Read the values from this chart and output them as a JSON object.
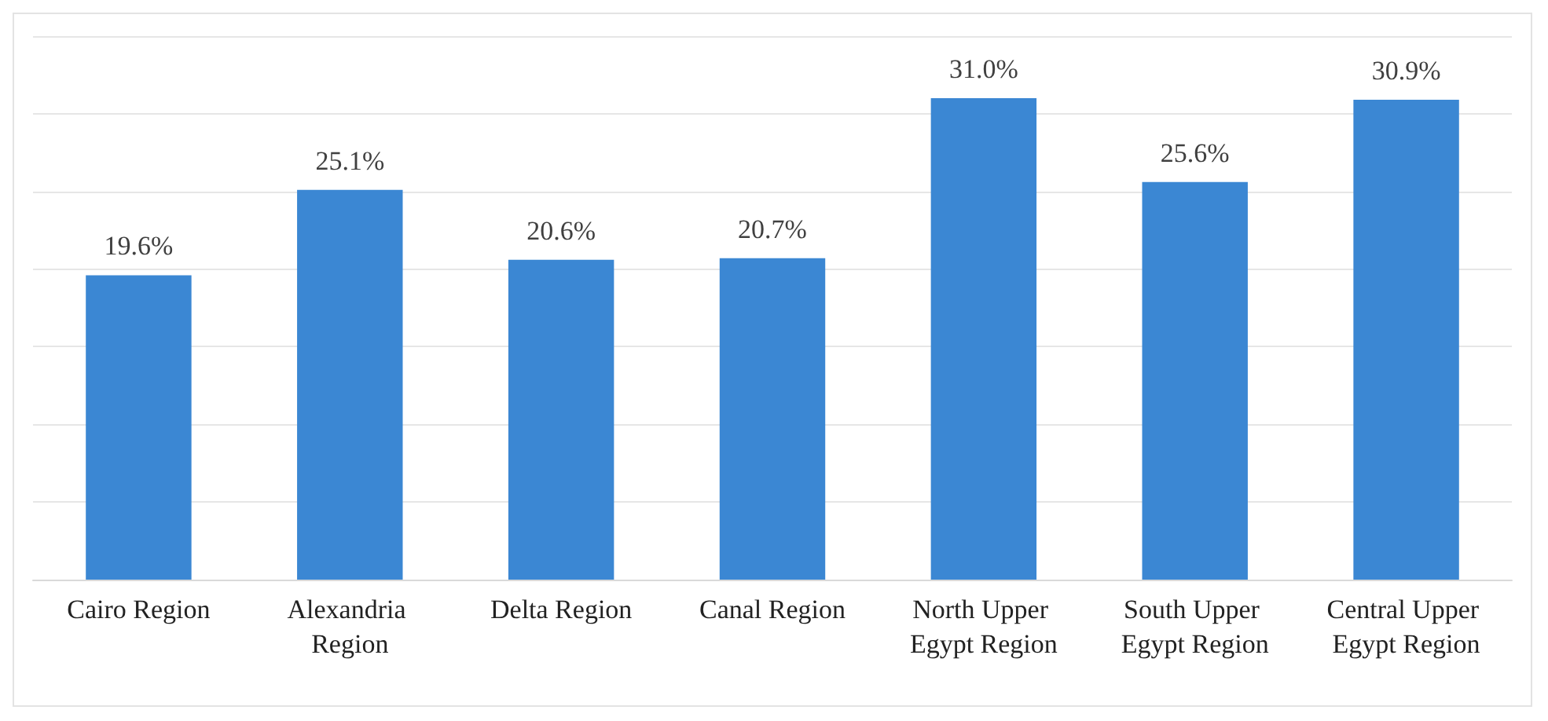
{
  "chart_data": {
    "type": "bar",
    "categories": [
      "Cairo Region",
      "Alexandria Region",
      "Delta Region",
      "Canal Region",
      "North Upper Egypt Region",
      "South Upper Egypt Region",
      "Central Upper Egypt Region"
    ],
    "values": [
      19.6,
      25.1,
      20.6,
      20.7,
      31.0,
      25.6,
      30.9
    ],
    "value_labels": [
      "19.6%",
      "25.1%",
      "20.6%",
      "20.7%",
      "31.0%",
      "25.6%",
      "30.9%"
    ],
    "color": "#3b87d3",
    "ylim": [
      0,
      35
    ],
    "yticks": [
      {
        "value": 0,
        "label": null
      },
      {
        "value": 5,
        "label": null
      },
      {
        "value": 10,
        "label": null
      },
      {
        "value": 15,
        "label": null
      },
      {
        "value": 20,
        "label": null
      },
      {
        "value": 25,
        "label": null
      },
      {
        "value": 30,
        "label": null
      },
      {
        "value": 35,
        "label": null
      }
    ],
    "grid": "y",
    "tick_labels": "x"
  }
}
